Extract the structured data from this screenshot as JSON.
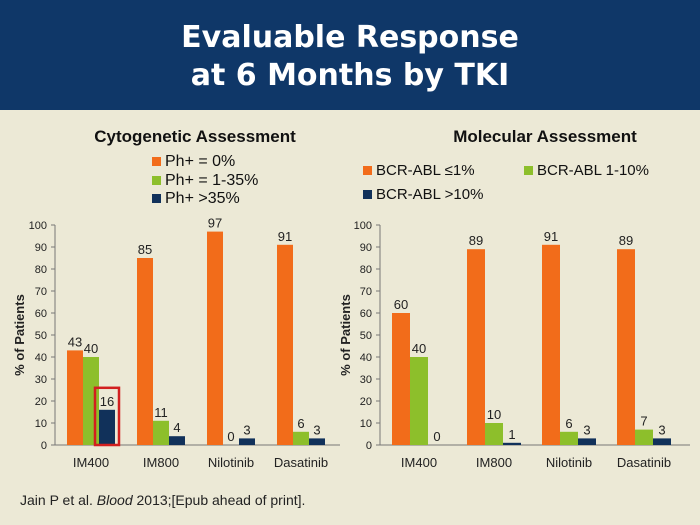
{
  "title": {
    "line1": "Evaluable Response",
    "line2": "at 6 Months by TKI"
  },
  "citation": {
    "prefix": "Jain P et al. ",
    "journal": "Blood",
    "suffix": " 2013;[Epub ahead of print]."
  },
  "colors": {
    "header_bg": "#0f3768",
    "background": "#ece9d6",
    "orange": "#f26c1a",
    "green": "#8dbf2b",
    "navy": "#11315a",
    "highlight_box": "#d21f1f"
  },
  "chart_data": [
    {
      "type": "bar",
      "title": "Cytogenetic Assessment",
      "ylabel": "% of Patients",
      "xlabel": "",
      "ylim": [
        0,
        100
      ],
      "yticks": [
        0,
        10,
        20,
        30,
        40,
        50,
        60,
        70,
        80,
        90,
        100
      ],
      "grid": false,
      "legend_position": "top",
      "categories": [
        "IM400",
        "IM800",
        "Nilotinib",
        "Dasatinib"
      ],
      "series": [
        {
          "name": "Ph+ = 0%",
          "color": "#f26c1a",
          "values": [
            43,
            85,
            97,
            91
          ]
        },
        {
          "name": "Ph+ = 1-35%",
          "color": "#8dbf2b",
          "values": [
            40,
            11,
            0,
            6
          ]
        },
        {
          "name": "Ph+ >35%",
          "color": "#11315a",
          "values": [
            16,
            4,
            3,
            3
          ]
        }
      ],
      "data_labels": [
        [
          "43",
          "85",
          "97",
          "91"
        ],
        [
          "40",
          "11",
          "0",
          "6"
        ],
        [
          "16",
          "4",
          "3",
          "3"
        ]
      ],
      "highlight": {
        "series_index": 2,
        "category_index": 0,
        "color": "#d21f1f"
      }
    },
    {
      "type": "bar",
      "title": "Molecular Assessment",
      "ylabel": "% of Patients",
      "xlabel": "",
      "ylim": [
        0,
        100
      ],
      "yticks": [
        0,
        10,
        20,
        30,
        40,
        50,
        60,
        70,
        80,
        90,
        100
      ],
      "grid": false,
      "legend_position": "top",
      "categories": [
        "IM400",
        "IM800",
        "Nilotinib",
        "Dasatinib"
      ],
      "series": [
        {
          "name": "BCR-ABL ≤1%",
          "color": "#f26c1a",
          "values": [
            60,
            89,
            91,
            89
          ]
        },
        {
          "name": "BCR-ABL 1-10%",
          "color": "#8dbf2b",
          "values": [
            40,
            10,
            6,
            7
          ]
        },
        {
          "name": "BCR-ABL >10%",
          "color": "#11315a",
          "values": [
            0,
            1,
            3,
            3
          ]
        }
      ],
      "data_labels": [
        [
          "60",
          "89",
          "91",
          "89"
        ],
        [
          "40",
          "10",
          "6",
          "7"
        ],
        [
          "0",
          "1",
          "3",
          "3"
        ]
      ]
    }
  ]
}
